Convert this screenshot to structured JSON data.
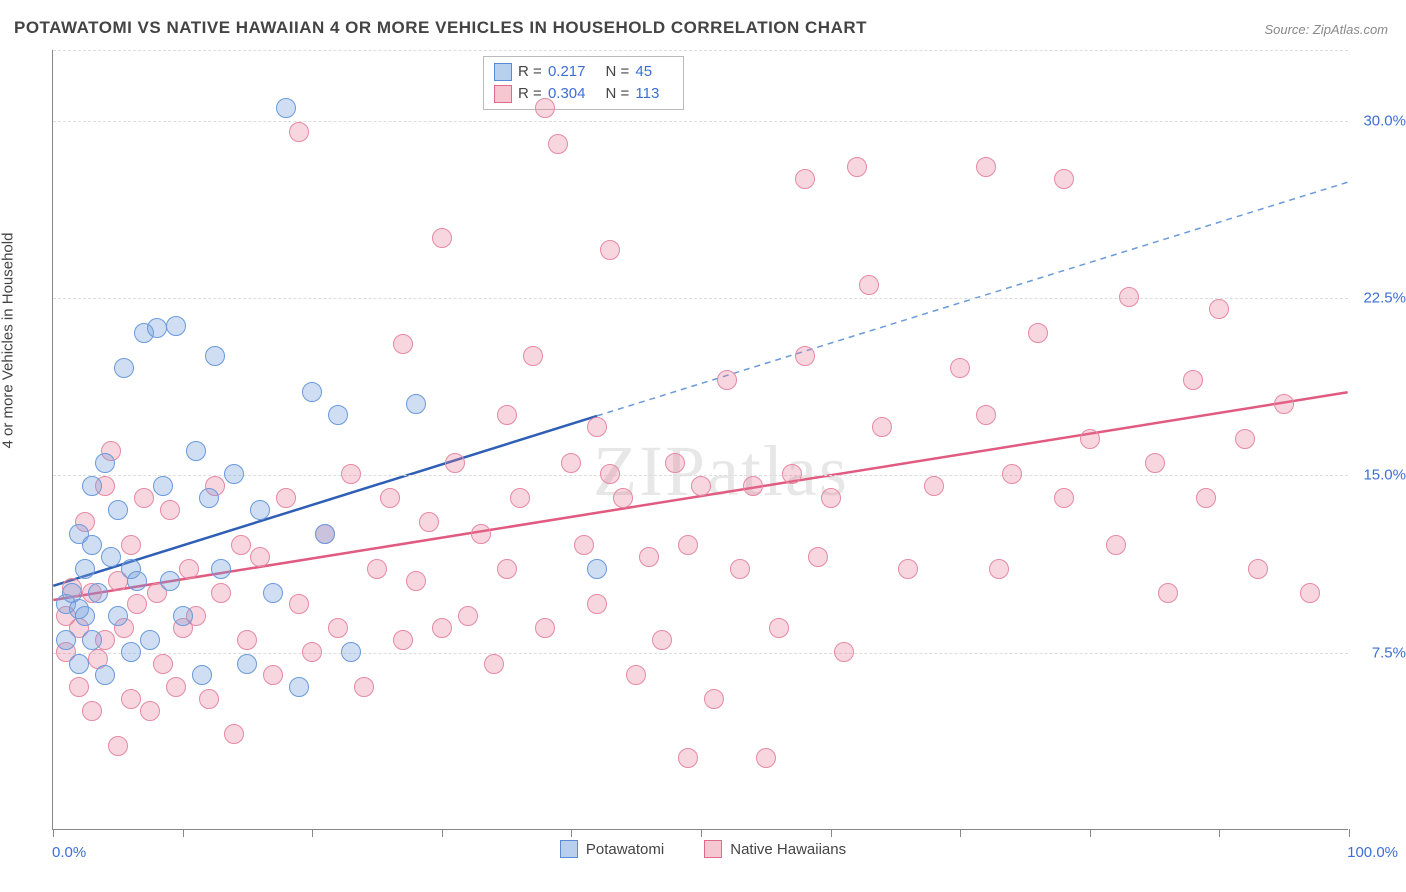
{
  "title": "POTAWATOMI VS NATIVE HAWAIIAN 4 OR MORE VEHICLES IN HOUSEHOLD CORRELATION CHART",
  "source": "Source: ZipAtlas.com",
  "y_axis_title": "4 or more Vehicles in Household",
  "watermark": "ZIPatlas",
  "chart": {
    "type": "scatter",
    "xlim": [
      0,
      100
    ],
    "ylim": [
      0,
      33
    ],
    "x_ticks": [
      0,
      10,
      20,
      30,
      40,
      50,
      60,
      70,
      80,
      90,
      100
    ],
    "x_tick_labels": {
      "left": "0.0%",
      "right": "100.0%"
    },
    "y_ticks": [
      {
        "value": 7.5,
        "label": "7.5%"
      },
      {
        "value": 15.0,
        "label": "15.0%"
      },
      {
        "value": 22.5,
        "label": "22.5%"
      },
      {
        "value": 30.0,
        "label": "30.0%"
      }
    ],
    "grid_color": "#dddddd",
    "background_color": "#ffffff",
    "axis_color": "#888888",
    "label_color": "#3b6fd6",
    "title_fontsize": 17,
    "label_fontsize": 15,
    "series": [
      {
        "name": "Potawatomi",
        "swatch_fill": "#b8cfee",
        "swatch_border": "#5a8cd6",
        "point_fill": "rgba(120,160,220,0.35)",
        "point_border": "#6a9adb",
        "point_radius": 10,
        "line_color": "#2e5fb5",
        "line_width": 2.5,
        "dash_color": "#6a9adb",
        "R": "0.217",
        "N": "45",
        "trend": {
          "x1": 0,
          "y1": 10.3,
          "x2": 42,
          "y2": 17.5,
          "x2_dash": 100,
          "y2_dash": 27.4
        },
        "points": [
          [
            1,
            8.0
          ],
          [
            1,
            9.5
          ],
          [
            1.5,
            10.0
          ],
          [
            2,
            7.0
          ],
          [
            2,
            12.5
          ],
          [
            2,
            9.3
          ],
          [
            2.5,
            11.0
          ],
          [
            2.5,
            9.0
          ],
          [
            3,
            14.5
          ],
          [
            3,
            8.0
          ],
          [
            3,
            12.0
          ],
          [
            3.5,
            10.0
          ],
          [
            4,
            15.5
          ],
          [
            4,
            6.5
          ],
          [
            4.5,
            11.5
          ],
          [
            5,
            13.5
          ],
          [
            5,
            9.0
          ],
          [
            5.5,
            19.5
          ],
          [
            6,
            7.5
          ],
          [
            6,
            11.0
          ],
          [
            6.5,
            10.5
          ],
          [
            7,
            21.0
          ],
          [
            7.5,
            8.0
          ],
          [
            8,
            21.2
          ],
          [
            8.5,
            14.5
          ],
          [
            9,
            10.5
          ],
          [
            9.5,
            21.3
          ],
          [
            10,
            9.0
          ],
          [
            11,
            16.0
          ],
          [
            11.5,
            6.5
          ],
          [
            12,
            14.0
          ],
          [
            12.5,
            20.0
          ],
          [
            13,
            11.0
          ],
          [
            14,
            15.0
          ],
          [
            15,
            7.0
          ],
          [
            16,
            13.5
          ],
          [
            17,
            10.0
          ],
          [
            18,
            30.5
          ],
          [
            19,
            6.0
          ],
          [
            20,
            18.5
          ],
          [
            21,
            12.5
          ],
          [
            22,
            17.5
          ],
          [
            23,
            7.5
          ],
          [
            28,
            18.0
          ],
          [
            42,
            11.0
          ]
        ]
      },
      {
        "name": "Native Hawaiians",
        "swatch_fill": "#f6c7d1",
        "swatch_border": "#e06a8a",
        "point_fill": "rgba(230,120,150,0.30)",
        "point_border": "#e58aa3",
        "point_radius": 10,
        "line_color": "#e15a80",
        "line_width": 2.5,
        "R": "0.304",
        "N": "113",
        "trend": {
          "x1": 0,
          "y1": 9.7,
          "x2": 100,
          "y2": 18.5
        },
        "points": [
          [
            1,
            7.5
          ],
          [
            1,
            9.0
          ],
          [
            1.5,
            10.2
          ],
          [
            2,
            6.0
          ],
          [
            2,
            8.5
          ],
          [
            2.5,
            13.0
          ],
          [
            3,
            5.0
          ],
          [
            3,
            10.0
          ],
          [
            3.5,
            7.2
          ],
          [
            4,
            14.5
          ],
          [
            4,
            8.0
          ],
          [
            4.5,
            16.0
          ],
          [
            5,
            3.5
          ],
          [
            5,
            10.5
          ],
          [
            5.5,
            8.5
          ],
          [
            6,
            12.0
          ],
          [
            6,
            5.5
          ],
          [
            6.5,
            9.5
          ],
          [
            7,
            14.0
          ],
          [
            7.5,
            5.0
          ],
          [
            8,
            10.0
          ],
          [
            8.5,
            7.0
          ],
          [
            9,
            13.5
          ],
          [
            9.5,
            6.0
          ],
          [
            10,
            8.5
          ],
          [
            10.5,
            11.0
          ],
          [
            11,
            9.0
          ],
          [
            12,
            5.5
          ],
          [
            12.5,
            14.5
          ],
          [
            13,
            10.0
          ],
          [
            14,
            4.0
          ],
          [
            14.5,
            12.0
          ],
          [
            15,
            8.0
          ],
          [
            16,
            11.5
          ],
          [
            17,
            6.5
          ],
          [
            18,
            14.0
          ],
          [
            19,
            9.5
          ],
          [
            19,
            29.5
          ],
          [
            20,
            7.5
          ],
          [
            21,
            12.5
          ],
          [
            22,
            8.5
          ],
          [
            23,
            15.0
          ],
          [
            24,
            6.0
          ],
          [
            25,
            11.0
          ],
          [
            26,
            14.0
          ],
          [
            27,
            8.0
          ],
          [
            27,
            20.5
          ],
          [
            28,
            10.5
          ],
          [
            29,
            13.0
          ],
          [
            30,
            8.5
          ],
          [
            30,
            25.0
          ],
          [
            31,
            15.5
          ],
          [
            32,
            9.0
          ],
          [
            33,
            12.5
          ],
          [
            34,
            7.0
          ],
          [
            35,
            17.5
          ],
          [
            35,
            11.0
          ],
          [
            36,
            14.0
          ],
          [
            37,
            20.0
          ],
          [
            38,
            8.5
          ],
          [
            38,
            30.5
          ],
          [
            39,
            29.0
          ],
          [
            40,
            15.5
          ],
          [
            41,
            12.0
          ],
          [
            42,
            9.5
          ],
          [
            42,
            17.0
          ],
          [
            43,
            15.0
          ],
          [
            43,
            24.5
          ],
          [
            44,
            14.0
          ],
          [
            45,
            6.5
          ],
          [
            46,
            11.5
          ],
          [
            47,
            8.0
          ],
          [
            48,
            15.5
          ],
          [
            49,
            3.0
          ],
          [
            49,
            12.0
          ],
          [
            50,
            14.5
          ],
          [
            51,
            5.5
          ],
          [
            52,
            19.0
          ],
          [
            53,
            11.0
          ],
          [
            54,
            14.5
          ],
          [
            55,
            3.0
          ],
          [
            56,
            8.5
          ],
          [
            57,
            15.0
          ],
          [
            58,
            20.0
          ],
          [
            58,
            27.5
          ],
          [
            59,
            11.5
          ],
          [
            60,
            14.0
          ],
          [
            61,
            7.5
          ],
          [
            62,
            28.0
          ],
          [
            63,
            23.0
          ],
          [
            64,
            17.0
          ],
          [
            66,
            11.0
          ],
          [
            68,
            14.5
          ],
          [
            70,
            19.5
          ],
          [
            72,
            17.5
          ],
          [
            72,
            28.0
          ],
          [
            73,
            11.0
          ],
          [
            74,
            15.0
          ],
          [
            76,
            21.0
          ],
          [
            78,
            27.5
          ],
          [
            78,
            14.0
          ],
          [
            80,
            16.5
          ],
          [
            82,
            12.0
          ],
          [
            83,
            22.5
          ],
          [
            85,
            15.5
          ],
          [
            86,
            10.0
          ],
          [
            88,
            19.0
          ],
          [
            89,
            14.0
          ],
          [
            90,
            22.0
          ],
          [
            92,
            16.5
          ],
          [
            93,
            11.0
          ],
          [
            95,
            18.0
          ],
          [
            97,
            10.0
          ]
        ]
      }
    ]
  },
  "bottom_legend": [
    {
      "label": "Potawatomi",
      "fill": "#b8cfee",
      "border": "#5a8cd6"
    },
    {
      "label": "Native Hawaiians",
      "fill": "#f6c7d1",
      "border": "#e06a8a"
    }
  ]
}
